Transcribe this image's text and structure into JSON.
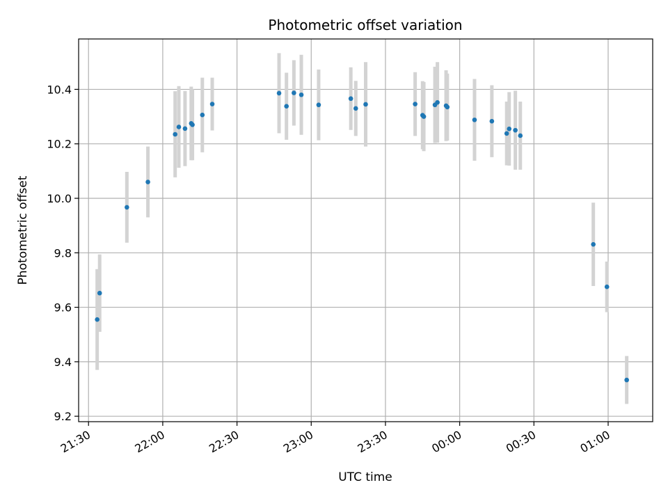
{
  "chart_data": {
    "type": "scatter",
    "title": "Photometric offset variation",
    "xlabel": "UTC time",
    "ylabel": "Photometric offset",
    "x_ticks": [
      "21:30",
      "22:00",
      "22:30",
      "23:00",
      "23:30",
      "00:00",
      "00:30",
      "01:00"
    ],
    "y_ticks": [
      "9.2",
      "9.4",
      "9.6",
      "9.8",
      "10.0",
      "10.2",
      "10.4"
    ],
    "xlim": [
      "21:26",
      "01:18"
    ],
    "ylim": [
      9.18,
      10.585
    ],
    "grid": true,
    "point_color": "#1f77b4",
    "errorbar_color": "#d3d3d3",
    "points": [
      {
        "x": "21:33.5",
        "y": 9.555,
        "err": 0.185
      },
      {
        "x": "21:34.5",
        "y": 9.652,
        "err": 0.142
      },
      {
        "x": "21:45.5",
        "y": 9.967,
        "err": 0.13
      },
      {
        "x": "21:54",
        "y": 10.06,
        "err": 0.13
      },
      {
        "x": "22:05",
        "y": 10.235,
        "err": 0.158
      },
      {
        "x": "22:06.5",
        "y": 10.262,
        "err": 0.15
      },
      {
        "x": "22:09",
        "y": 10.256,
        "err": 0.138
      },
      {
        "x": "22:11.5",
        "y": 10.275,
        "err": 0.135
      },
      {
        "x": "22:12",
        "y": 10.27,
        "err": 0.13
      },
      {
        "x": "22:16",
        "y": 10.306,
        "err": 0.137
      },
      {
        "x": "22:20",
        "y": 10.346,
        "err": 0.097
      },
      {
        "x": "22:47",
        "y": 10.386,
        "err": 0.147
      },
      {
        "x": "22:50",
        "y": 10.338,
        "err": 0.123
      },
      {
        "x": "22:53",
        "y": 10.387,
        "err": 0.12
      },
      {
        "x": "22:56",
        "y": 10.38,
        "err": 0.147
      },
      {
        "x": "23:03",
        "y": 10.343,
        "err": 0.13
      },
      {
        "x": "23:16",
        "y": 10.366,
        "err": 0.115
      },
      {
        "x": "23:18",
        "y": 10.33,
        "err": 0.101
      },
      {
        "x": "23:22",
        "y": 10.345,
        "err": 0.155
      },
      {
        "x": "23:42",
        "y": 10.346,
        "err": 0.117
      },
      {
        "x": "23:45",
        "y": 10.305,
        "err": 0.125
      },
      {
        "x": "23:45.5",
        "y": 10.3,
        "err": 0.127
      },
      {
        "x": "23:50",
        "y": 10.343,
        "err": 0.14
      },
      {
        "x": "23:51",
        "y": 10.352,
        "err": 0.148
      },
      {
        "x": "23:54.5",
        "y": 10.34,
        "err": 0.13
      },
      {
        "x": "23:55",
        "y": 10.335,
        "err": 0.123
      },
      {
        "x": "00:06",
        "y": 10.288,
        "err": 0.15
      },
      {
        "x": "00:13",
        "y": 10.283,
        "err": 0.132
      },
      {
        "x": "00:19",
        "y": 10.238,
        "err": 0.117
      },
      {
        "x": "00:20",
        "y": 10.255,
        "err": 0.135
      },
      {
        "x": "00:22.5",
        "y": 10.25,
        "err": 0.145
      },
      {
        "x": "00:24.5",
        "y": 10.23,
        "err": 0.125
      },
      {
        "x": "00:54",
        "y": 9.831,
        "err": 0.153
      },
      {
        "x": "00:59.5",
        "y": 9.675,
        "err": 0.093
      },
      {
        "x": "01:07.5",
        "y": 9.333,
        "err": 0.088
      }
    ]
  }
}
